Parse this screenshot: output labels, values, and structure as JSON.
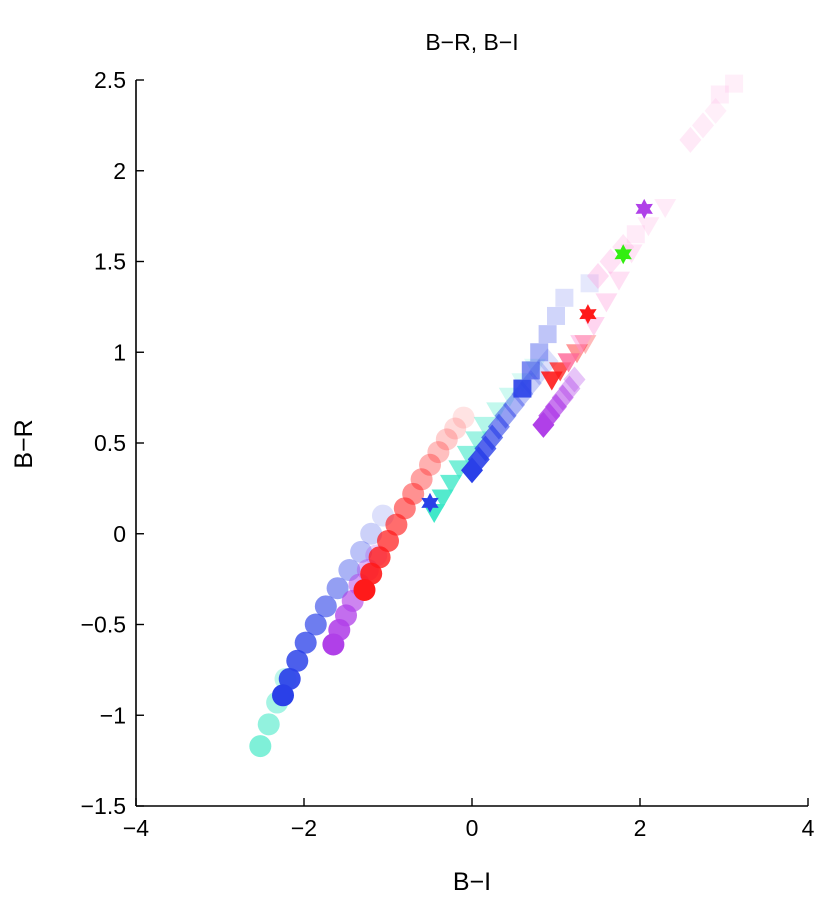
{
  "chart_data": {
    "type": "scatter",
    "title": "B−R, B−I",
    "xlabel": "B−I",
    "ylabel": "B−R",
    "xlim": [
      -4,
      4
    ],
    "ylim": [
      -1.5,
      2.5
    ],
    "xticks": [
      -4,
      -2,
      0,
      2,
      4
    ],
    "yticks": [
      -1.5,
      -1,
      -0.5,
      0,
      0.5,
      1,
      1.5,
      2,
      2.5
    ],
    "xtick_labels": [
      "−4",
      "−2",
      "0",
      "2",
      "4"
    ],
    "ytick_labels": [
      "−1.5",
      "−1",
      "−0.5",
      "0",
      "0.5",
      "1",
      "1.5",
      "2",
      "2.5"
    ],
    "grid": false,
    "legend": "none",
    "series": [
      {
        "marker": "circle",
        "color": "#7ff0d8",
        "x": [
          -2.52,
          -2.42,
          -2.32,
          -2.22
        ],
        "y": [
          -1.17,
          -1.05,
          -0.93,
          -0.8
        ],
        "opacity": [
          1,
          0.85,
          0.7,
          0.5
        ]
      },
      {
        "marker": "circle",
        "color": "#2a40e8",
        "x": [
          -2.25,
          -2.17,
          -2.08,
          -1.98,
          -1.86,
          -1.74,
          -1.6,
          -1.46,
          -1.32,
          -1.2,
          -1.06
        ],
        "y": [
          -0.89,
          -0.8,
          -0.7,
          -0.6,
          -0.5,
          -0.4,
          -0.3,
          -0.2,
          -0.1,
          0.0,
          0.1
        ],
        "opacity": [
          1,
          0.92,
          0.84,
          0.76,
          0.68,
          0.6,
          0.5,
          0.4,
          0.32,
          0.24,
          0.16
        ]
      },
      {
        "marker": "circle",
        "color": "#b040e8",
        "x": [
          -1.65,
          -1.58,
          -1.5,
          -1.42,
          -1.34,
          -1.24,
          -1.14
        ],
        "y": [
          -0.61,
          -0.53,
          -0.45,
          -0.37,
          -0.28,
          -0.2,
          -0.12
        ],
        "opacity": [
          1,
          0.88,
          0.76,
          0.64,
          0.5,
          0.38,
          0.26
        ]
      },
      {
        "marker": "circle",
        "color": "#ff1a1a",
        "x": [
          -1.28,
          -1.2,
          -1.1,
          -1.0,
          -0.9,
          -0.8,
          -0.7,
          -0.6,
          -0.5,
          -0.4,
          -0.3,
          -0.2,
          -0.1
        ],
        "y": [
          -0.31,
          -0.22,
          -0.13,
          -0.04,
          0.05,
          0.14,
          0.22,
          0.3,
          0.38,
          0.45,
          0.52,
          0.58,
          0.64
        ],
        "opacity": [
          1,
          0.9,
          0.8,
          0.72,
          0.64,
          0.56,
          0.48,
          0.4,
          0.34,
          0.28,
          0.22,
          0.16,
          0.12
        ]
      },
      {
        "marker": "triangle-down",
        "color": "#40e8c8",
        "x": [
          -0.45,
          -0.35,
          -0.25,
          -0.15,
          -0.05,
          0.05,
          0.15,
          0.3,
          0.45,
          0.6,
          0.75
        ],
        "y": [
          0.12,
          0.2,
          0.28,
          0.36,
          0.44,
          0.52,
          0.6,
          0.68,
          0.76,
          0.84,
          0.92
        ],
        "opacity": [
          1,
          0.9,
          0.8,
          0.7,
          0.6,
          0.5,
          0.4,
          0.32,
          0.26,
          0.2,
          0.16
        ]
      },
      {
        "marker": "diamond",
        "color": "#2a40e8",
        "x": [
          0.0,
          0.08,
          0.16,
          0.24,
          0.32,
          0.4,
          0.5,
          0.6,
          0.7,
          0.8,
          0.9
        ],
        "y": [
          0.35,
          0.41,
          0.47,
          0.53,
          0.59,
          0.65,
          0.71,
          0.77,
          0.83,
          0.89,
          0.95
        ],
        "opacity": [
          1,
          0.9,
          0.8,
          0.7,
          0.6,
          0.5,
          0.4,
          0.32,
          0.26,
          0.2,
          0.16
        ]
      },
      {
        "marker": "square",
        "color": "#2a40e8",
        "x": [
          0.6,
          0.7,
          0.8,
          0.9,
          1.0,
          1.1,
          1.4
        ],
        "y": [
          0.8,
          0.9,
          1.0,
          1.1,
          1.2,
          1.3,
          1.38
        ],
        "opacity": [
          0.9,
          0.6,
          0.4,
          0.3,
          0.22,
          0.16,
          0.12
        ]
      },
      {
        "marker": "diamond",
        "color": "#b040e8",
        "x": [
          0.85,
          0.92,
          1.0,
          1.08,
          1.16,
          1.22
        ],
        "y": [
          0.6,
          0.65,
          0.7,
          0.75,
          0.8,
          0.85
        ],
        "opacity": [
          1,
          0.85,
          0.7,
          0.55,
          0.4,
          0.3
        ]
      },
      {
        "marker": "triangle-down",
        "color": "#ff1a1a",
        "x": [
          0.95,
          1.05,
          1.15,
          1.25,
          1.35
        ],
        "y": [
          0.85,
          0.9,
          0.95,
          1.0,
          1.05
        ],
        "opacity": [
          0.9,
          0.75,
          0.6,
          0.45,
          0.3
        ]
      },
      {
        "marker": "triangle-down",
        "color": "#ff90d8",
        "x": [
          1.15,
          1.3,
          1.45,
          1.6,
          1.75,
          1.9,
          2.1,
          2.3
        ],
        "y": [
          0.95,
          1.05,
          1.15,
          1.28,
          1.4,
          1.55,
          1.7,
          1.8
        ],
        "opacity": [
          0.55,
          0.45,
          0.38,
          0.32,
          0.28,
          0.24,
          0.2,
          0.18
        ]
      },
      {
        "marker": "diamond",
        "color": "#ff90d8",
        "x": [
          1.5,
          1.65,
          1.8,
          2.6,
          2.75,
          2.9
        ],
        "y": [
          1.42,
          1.5,
          1.58,
          2.17,
          2.25,
          2.33
        ],
        "opacity": [
          0.3,
          0.26,
          0.22,
          0.2,
          0.17,
          0.14
        ]
      },
      {
        "marker": "square",
        "color": "#ff90d8",
        "x": [
          1.95,
          2.95,
          3.12
        ],
        "y": [
          1.65,
          2.42,
          2.48
        ],
        "opacity": [
          0.18,
          0.16,
          0.14
        ]
      },
      {
        "marker": "hexagram",
        "color": "#2a40e8",
        "x": [
          -0.5
        ],
        "y": [
          0.17
        ],
        "opacity": [
          1
        ]
      },
      {
        "marker": "hexagram",
        "color": "#ff1a1a",
        "x": [
          1.38
        ],
        "y": [
          1.21
        ],
        "opacity": [
          1
        ]
      },
      {
        "marker": "hexagram",
        "color": "#33ee11",
        "x": [
          1.8
        ],
        "y": [
          1.54
        ],
        "opacity": [
          1
        ]
      },
      {
        "marker": "hexagram",
        "color": "#b040e8",
        "x": [
          2.05
        ],
        "y": [
          1.79
        ],
        "opacity": [
          1
        ]
      }
    ]
  }
}
